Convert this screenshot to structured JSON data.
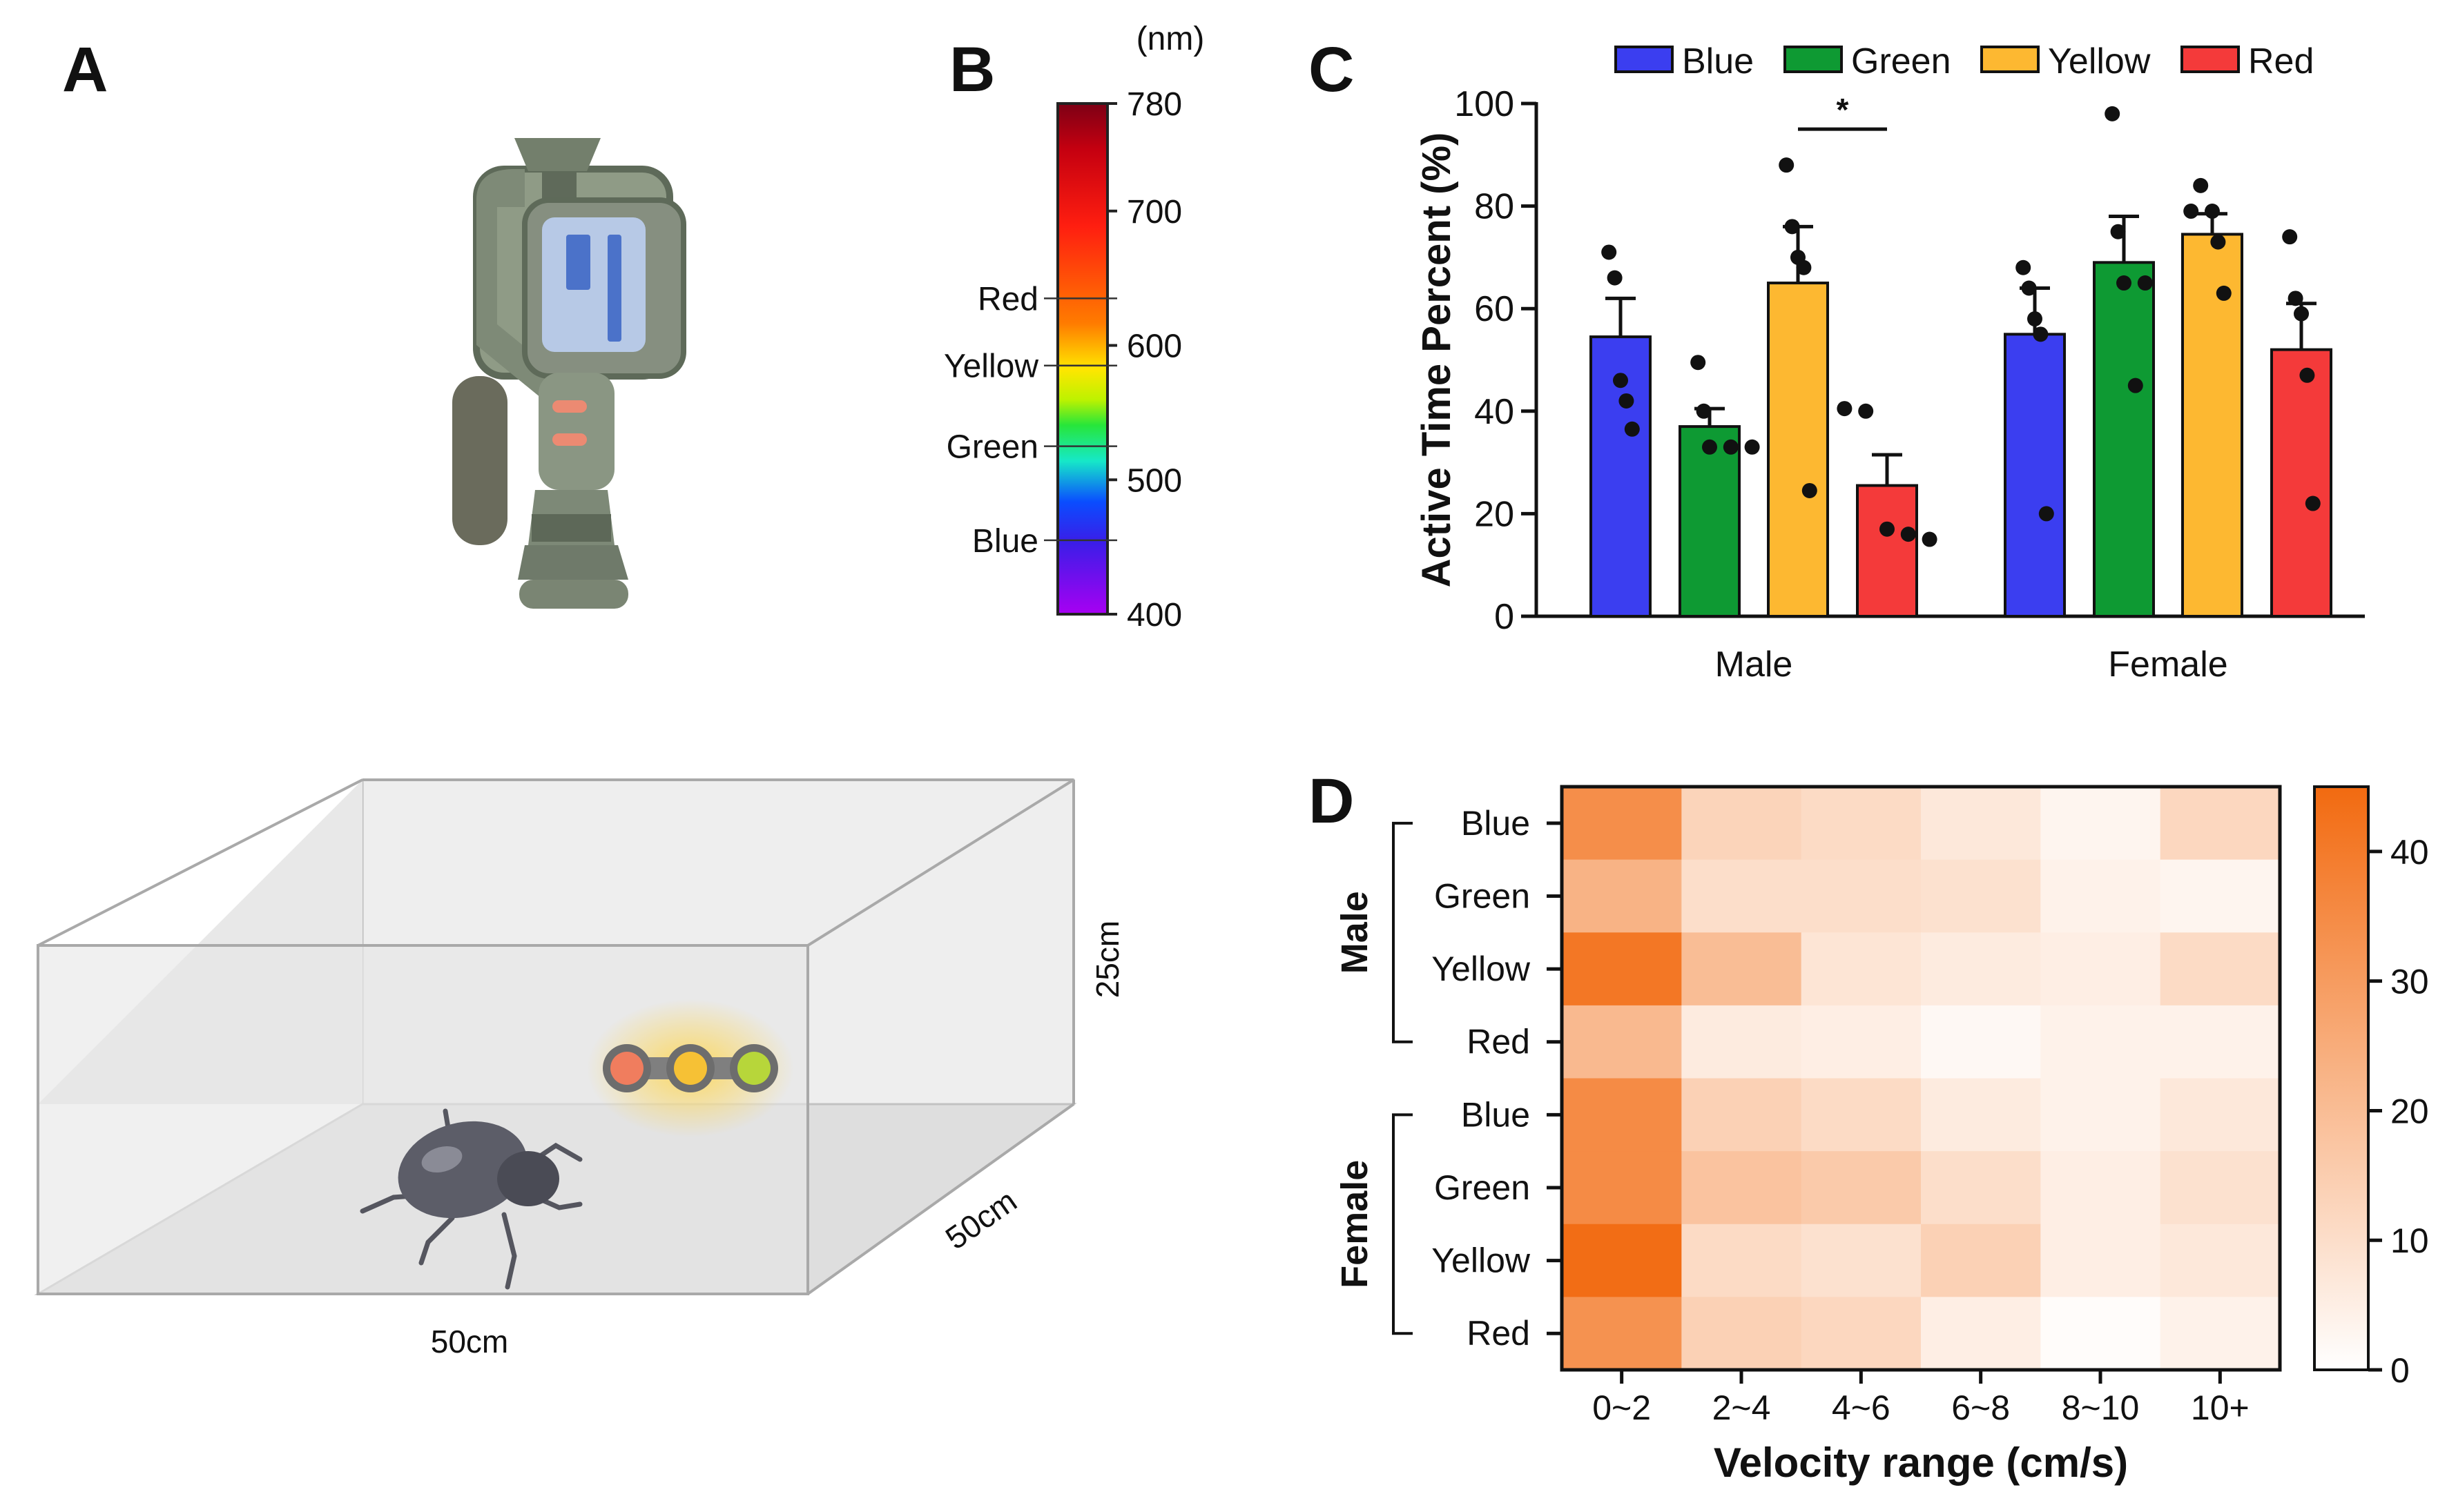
{
  "panels": {
    "a": {
      "label": "A",
      "dims": {
        "width": "50cm",
        "depth": "50cm",
        "height": "25cm"
      },
      "led_colors": [
        "#f07d5e",
        "#f6c135",
        "#b7d63a"
      ]
    },
    "b": {
      "label": "B",
      "unit": "(nm)",
      "ticks": [
        "780",
        "700",
        "600",
        "500",
        "400"
      ],
      "markers": [
        "Red",
        "Yellow",
        "Green",
        "Blue"
      ],
      "tick_values": [
        780,
        700,
        600,
        500,
        400
      ],
      "marker_values": [
        635,
        585,
        525,
        455
      ]
    },
    "c": {
      "label": "C",
      "significance": "*"
    },
    "d": {
      "label": "D"
    }
  },
  "chart_data": [
    {
      "type": "bar",
      "title": "",
      "xlabel": "",
      "ylabel": "Active Time Percent (%)",
      "ylim": [
        0,
        100
      ],
      "yticks": [
        "0",
        "20",
        "40",
        "60",
        "80",
        "100"
      ],
      "groups": [
        "Male",
        "Female"
      ],
      "legend": {
        "placement": "top",
        "entries": [
          "Blue",
          "Green",
          "Yellow",
          "Red"
        ]
      },
      "colors": {
        "Blue": "#3b3ef0",
        "Green": "#0e9a33",
        "Yellow": "#fdb831",
        "Red": "#f43a3a"
      },
      "series": [
        {
          "name": "Blue",
          "values": [
            54.5,
            55
          ],
          "sem": [
            7.5,
            9
          ],
          "points": [
            [
              71,
              66,
              46,
              42,
              36.5
            ],
            [
              68,
              64,
              58,
              55,
              20
            ]
          ]
        },
        {
          "name": "Green",
          "values": [
            37,
            69
          ],
          "sem": [
            3.5,
            9
          ],
          "points": [
            [
              49.5,
              40,
              33,
              33,
              33
            ],
            [
              98,
              75,
              65,
              65,
              45
            ]
          ]
        },
        {
          "name": "Yellow",
          "values": [
            65,
            74.5
          ],
          "sem": [
            11,
            4
          ],
          "points": [
            [
              88,
              76,
              70,
              68,
              24.5
            ],
            [
              84,
              79,
              79,
              73,
              63
            ]
          ]
        },
        {
          "name": "Red",
          "values": [
            25.5,
            52
          ],
          "sem": [
            6,
            9
          ],
          "points": [
            [
              40.5,
              40,
              17,
              16,
              15
            ],
            [
              74,
              62,
              59,
              47,
              22
            ]
          ]
        }
      ],
      "significance": {
        "group": "Male",
        "between": [
          "Yellow",
          "Red"
        ],
        "label": "*",
        "y": 95
      }
    },
    {
      "type": "heatmap",
      "xlabel": "Velocity range (cm/s)",
      "x_categories": [
        "0~2",
        "2~4",
        "4~6",
        "6~8",
        "8~10",
        "10+"
      ],
      "row_groups": [
        {
          "name": "Male",
          "rows": [
            "Blue",
            "Green",
            "Yellow",
            "Red"
          ]
        },
        {
          "name": "Female",
          "rows": [
            "Blue",
            "Green",
            "Yellow",
            "Red"
          ]
        }
      ],
      "values": [
        [
          34,
          13,
          11,
          7,
          3,
          12
        ],
        [
          23,
          10,
          10,
          9,
          4,
          3
        ],
        [
          41,
          20,
          8,
          6,
          5,
          11
        ],
        [
          21,
          6,
          5,
          2,
          4,
          4
        ],
        [
          35,
          14,
          11,
          6,
          4,
          7
        ],
        [
          35,
          18,
          16,
          10,
          5,
          9
        ],
        [
          44,
          11,
          9,
          14,
          5,
          7
        ],
        [
          33,
          14,
          12,
          5,
          1,
          4
        ]
      ],
      "colorbar": {
        "min": 0,
        "max": 45,
        "ticks": [
          "0",
          "10",
          "20",
          "30",
          "40"
        ],
        "low_color": "#ffffff",
        "high_color": "#f26a10"
      }
    }
  ]
}
